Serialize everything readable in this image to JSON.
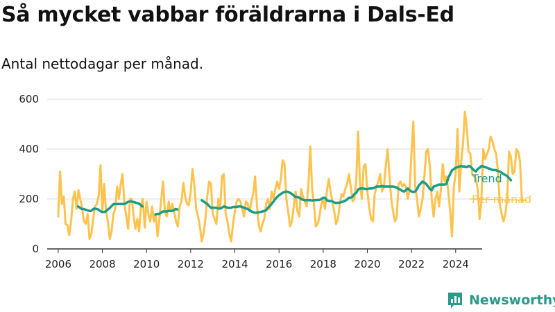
{
  "title": "Så mycket vabbar föräldrarna i Dals-Ed",
  "subtitle": "Antal nettodagar per månad.",
  "brand": {
    "name": "Newsworthy",
    "color": "#2a9a8a"
  },
  "colors": {
    "monthly": "#ffc24d",
    "trend": "#1a9c86",
    "axis": "#333333",
    "grid": "#dddddd"
  },
  "chart_data": {
    "type": "line",
    "title": "",
    "xlabel": "",
    "ylabel": "",
    "xlim": [
      2005.5,
      2025.2
    ],
    "ylim": [
      0,
      600
    ],
    "x_ticks": [
      "2006",
      "2008",
      "2010",
      "2012",
      "2014",
      "2016",
      "2018",
      "2020",
      "2022",
      "2024"
    ],
    "y_ticks": [
      "0",
      "200",
      "400",
      "600"
    ],
    "grid": true,
    "legend": "right, end of lines",
    "series": [
      {
        "name": "Per månad",
        "start_year": 2006.0,
        "step_months": 1,
        "values": [
          130,
          310,
          180,
          210,
          100,
          95,
          55,
          110,
          200,
          230,
          160,
          235,
          200,
          165,
          110,
          100,
          140,
          40,
          60,
          120,
          170,
          180,
          215,
          335,
          150,
          260,
          150,
          110,
          40,
          70,
          140,
          160,
          250,
          200,
          260,
          300,
          180,
          130,
          80,
          200,
          200,
          130,
          80,
          120,
          70,
          175,
          200,
          85,
          190,
          140,
          110,
          170,
          110,
          140,
          50,
          120,
          200,
          270,
          150,
          130,
          190,
          150,
          180,
          150,
          110,
          90,
          170,
          190,
          265,
          210,
          180,
          175,
          230,
          320,
          255,
          160,
          130,
          90,
          30,
          60,
          120,
          210,
          270,
          260,
          140,
          120,
          100,
          200,
          160,
          290,
          300,
          140,
          110,
          60,
          30,
          100,
          150,
          190,
          200,
          190,
          160,
          130,
          190,
          180,
          150,
          190,
          225,
          290,
          175,
          95,
          70,
          100,
          120,
          180,
          200,
          160,
          230,
          200,
          240,
          270,
          240,
          280,
          355,
          340,
          200,
          150,
          90,
          110,
          170,
          230,
          150,
          130,
          240,
          210,
          190,
          170,
          260,
          410,
          240,
          180,
          90,
          100,
          130,
          180,
          200,
          160,
          230,
          280,
          230,
          190,
          150,
          100,
          120,
          180,
          220,
          210,
          240,
          260,
          300,
          250,
          190,
          200,
          280,
          470,
          260,
          200,
          330,
          340,
          230,
          170,
          120,
          110,
          220,
          250,
          270,
          300,
          230,
          250,
          330,
          400,
          300,
          200,
          150,
          110,
          130,
          260,
          270,
          250,
          260,
          250,
          200,
          240,
          390,
          510,
          250,
          200,
          130,
          160,
          200,
          290,
          390,
          400,
          330,
          200,
          130,
          200,
          230,
          170,
          240,
          340,
          270,
          290,
          230,
          150,
          50,
          250,
          300,
          480,
          230,
          350,
          420,
          550,
          490,
          390,
          380,
          300,
          290,
          280,
          240,
          120,
          190,
          400,
          360,
          380,
          400,
          450,
          430,
          400,
          380,
          310,
          180,
          140,
          110,
          140,
          200,
          390,
          370,
          300,
          310,
          400,
          390,
          350,
          190,
          195
        ]
      },
      {
        "name": "Trend",
        "segments": [
          {
            "start_year": 2006.9,
            "values": [
              170,
              165,
              160,
              160,
              157,
              155,
              152,
              152,
              158,
              162,
              160,
              158,
              152,
              148,
              148,
              150,
              157,
              162,
              170,
              178,
              180,
              180,
              180,
              180,
              180,
              180,
              183,
              188,
              190,
              190,
              188,
              186,
              184,
              182,
              176,
              170
            ]
          },
          {
            "start_year": 2010.4,
            "values": [
              138,
              140,
              140,
              145,
              150,
              150,
              150,
              152,
              152,
              152,
              155,
              160,
              158
            ]
          },
          {
            "start_year": 2012.5,
            "values": [
              195,
              190,
              185,
              180,
              172,
              165,
              165,
              165,
              165,
              162,
              162,
              165,
              170,
              168,
              165,
              165,
              165,
              168,
              168,
              168,
              170,
              170,
              168,
              165,
              162,
              160,
              155,
              150,
              147,
              145,
              145,
              147,
              148,
              150,
              152,
              155,
              165,
              172,
              180,
              190,
              200,
              208,
              215,
              220,
              225,
              228,
              230,
              228,
              225,
              220,
              214,
              207,
              208,
              205,
              200,
              197,
              195,
              195,
              195,
              195,
              194,
              195,
              195,
              196,
              196,
              200,
              205,
              205,
              195,
              192,
              192,
              190,
              186,
              184,
              185,
              185,
              188,
              190,
              193,
              198,
              205,
              205,
              210,
              220,
              225,
              238,
              242,
              242,
              242,
              240,
              240,
              242,
              242,
              243,
              245,
              250,
              250,
              250,
              252,
              250,
              250,
              250,
              250,
              250,
              250,
              248,
              246,
              240,
              238,
              232,
              230,
              235,
              242,
              235,
              230,
              228,
              230,
              240,
              255,
              262,
              270,
              265,
              260,
              250,
              240,
              235,
              250,
              252,
              255,
              258,
              258,
              258,
              258,
              260,
              285,
              300,
              315,
              320,
              325,
              328,
              330,
              332,
              330,
              330,
              328,
              332,
              330,
              322,
              315,
              310,
              320,
              325,
              332,
              330,
              328,
              325,
              322,
              320,
              316,
              316,
              315,
              312,
              310,
              305,
              300,
              296,
              292,
              284,
              275
            ]
          }
        ]
      }
    ]
  }
}
